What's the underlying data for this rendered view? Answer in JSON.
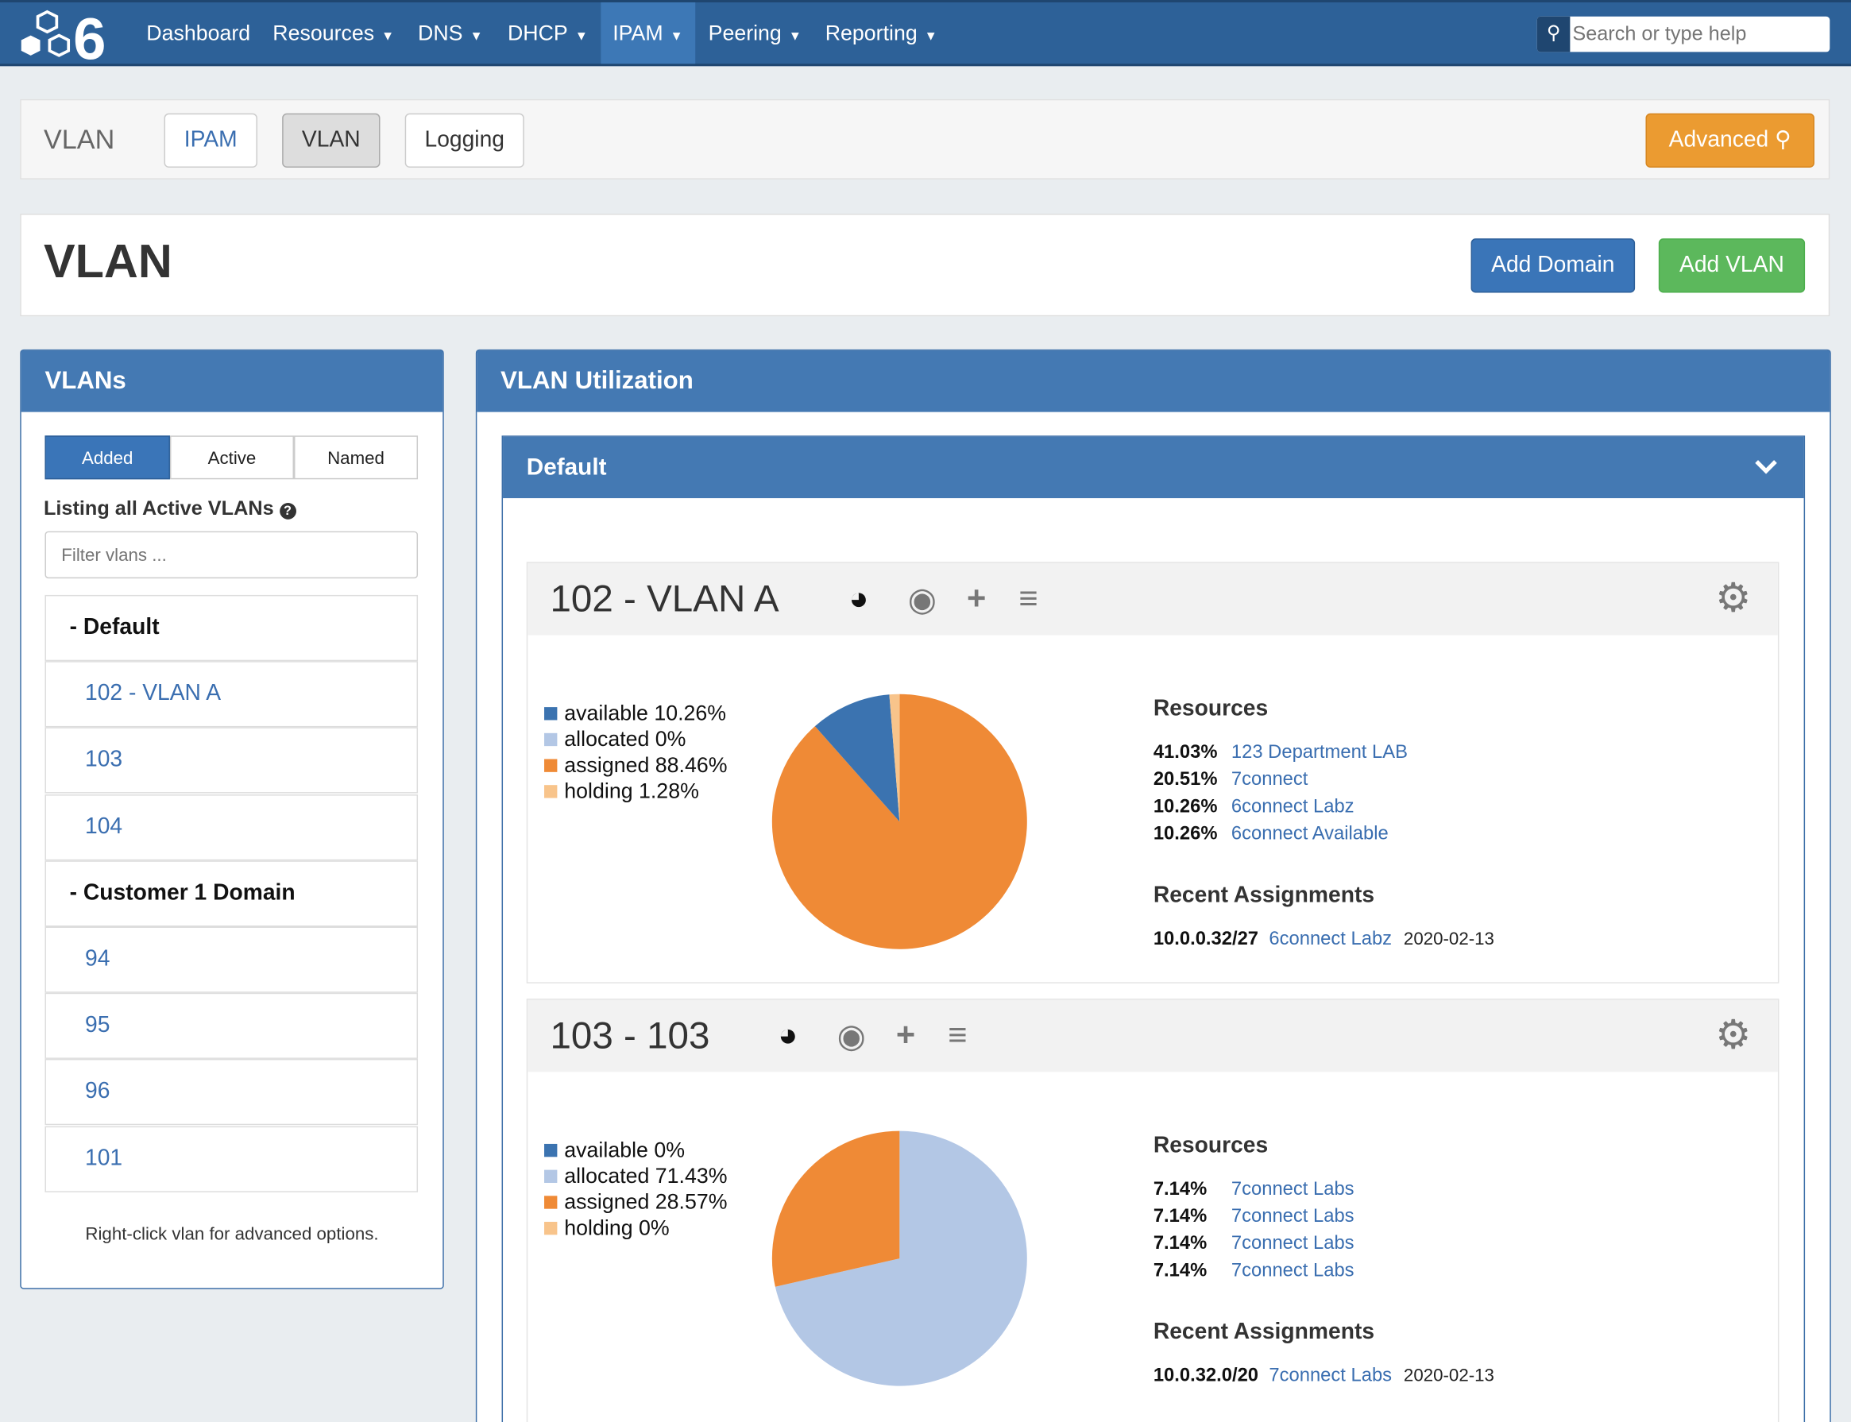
{
  "nav": {
    "items": [
      {
        "label": "Dashboard",
        "caret": false
      },
      {
        "label": "Resources",
        "caret": true
      },
      {
        "label": "DNS",
        "caret": true
      },
      {
        "label": "DHCP",
        "caret": true
      },
      {
        "label": "IPAM",
        "caret": true,
        "active": true
      },
      {
        "label": "Peering",
        "caret": true
      },
      {
        "label": "Reporting",
        "caret": true
      }
    ],
    "search_placeholder": "Search or type help"
  },
  "subnav": {
    "title": "VLAN",
    "buttons": [
      "IPAM",
      "VLAN",
      "Logging"
    ],
    "advanced": "Advanced"
  },
  "header": {
    "title": "VLAN",
    "add_domain": "Add Domain",
    "add_vlan": "Add VLAN"
  },
  "vlans": {
    "title": "VLANs",
    "tabs": [
      "Added",
      "Active",
      "Named"
    ],
    "listing": "Listing all Active VLANs",
    "filter_placeholder": "Filter vlans ...",
    "items": [
      {
        "label": "- Default",
        "domain": true
      },
      {
        "label": "102 - VLAN A"
      },
      {
        "label": "103"
      },
      {
        "label": "104"
      },
      {
        "label": "- Customer 1 Domain",
        "domain": true
      },
      {
        "label": "94"
      },
      {
        "label": "95"
      },
      {
        "label": "96"
      },
      {
        "label": "101"
      }
    ],
    "footer": "Right-click vlan for advanced options."
  },
  "util": {
    "title": "VLAN Utilization",
    "group": "Default"
  },
  "colors": {
    "available": "#3b73b0",
    "allocated": "#b3c7e5",
    "assigned": "#ef8a36",
    "holding": "#f8c48b"
  },
  "chart_data": [
    {
      "type": "pie",
      "title": "102 - VLAN A",
      "categories": [
        "available",
        "allocated",
        "assigned",
        "holding"
      ],
      "values": [
        10.26,
        0,
        88.46,
        1.28
      ],
      "legend": [
        "available 10.26%",
        "allocated 0%",
        "assigned 88.46%",
        "holding 1.28%"
      ],
      "resources_title": "Resources",
      "resources": [
        {
          "pct": "41.03%",
          "name": "123 Department LAB"
        },
        {
          "pct": "20.51%",
          "name": "7connect"
        },
        {
          "pct": "10.26%",
          "name": "6connect Labz"
        },
        {
          "pct": "10.26%",
          "name": "6connect Available"
        }
      ],
      "recent_title": "Recent Assignments",
      "recent": [
        {
          "net": "10.0.0.32/27",
          "name": "6connect Labz",
          "date": "2020-02-13"
        }
      ]
    },
    {
      "type": "pie",
      "title": "103 - 103",
      "categories": [
        "available",
        "allocated",
        "assigned",
        "holding"
      ],
      "values": [
        0,
        71.43,
        28.57,
        0
      ],
      "legend": [
        "available 0%",
        "allocated 71.43%",
        "assigned 28.57%",
        "holding 0%"
      ],
      "resources_title": "Resources",
      "resources": [
        {
          "pct": "7.14%",
          "name": "7connect Labs"
        },
        {
          "pct": "7.14%",
          "name": "7connect Labs"
        },
        {
          "pct": "7.14%",
          "name": "7connect Labs"
        },
        {
          "pct": "7.14%",
          "name": "7connect Labs"
        }
      ],
      "recent_title": "Recent Assignments",
      "recent": [
        {
          "net": "10.0.32.0/20",
          "name": "7connect Labs",
          "date": "2020-02-13"
        }
      ]
    }
  ]
}
